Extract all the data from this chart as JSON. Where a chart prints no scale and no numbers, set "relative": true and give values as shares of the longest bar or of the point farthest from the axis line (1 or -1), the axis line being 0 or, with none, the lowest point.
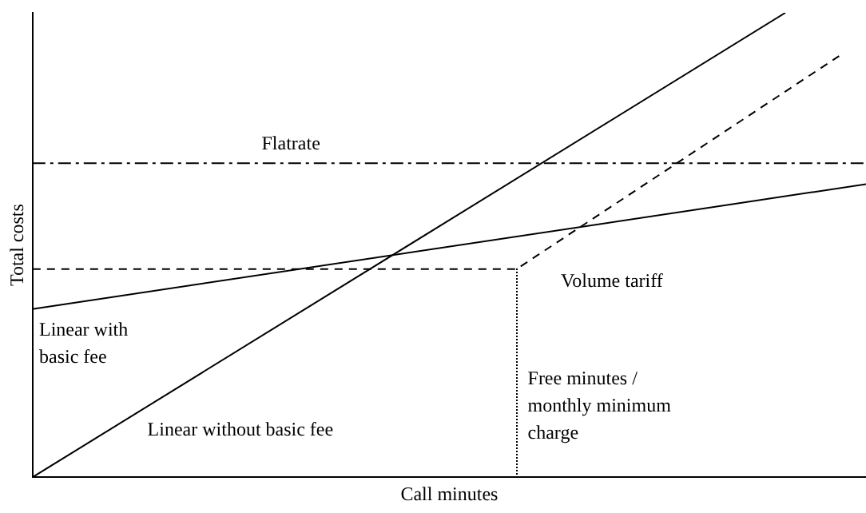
{
  "chart_data": {
    "type": "line",
    "relative": true,
    "xlabel": "Call minutes",
    "ylabel": "Total costs",
    "legend": false,
    "grid": false,
    "tick_labels": false,
    "marker": "none",
    "categories": [
      null,
      null,
      null,
      null,
      null,
      null,
      null,
      null,
      null,
      null,
      null,
      null,
      null,
      null,
      null,
      null,
      null,
      null,
      null,
      null,
      null,
      null,
      null,
      null,
      null,
      null,
      null,
      null,
      null,
      null,
      null,
      null
    ],
    "annotations": [
      "Free minutes / monthly minimum charge"
    ],
    "series": [
      {
        "name": "Linear without basic fee",
        "color": "#000000",
        "line_style": "solid",
        "values": [
          0,
          null,
          null,
          null,
          null,
          null,
          null,
          null,
          null,
          null,
          null,
          null,
          null,
          null,
          null,
          null,
          null,
          null,
          null,
          null,
          null,
          null,
          null,
          null,
          null,
          null,
          null,
          null,
          1,
          null,
          null,
          null
        ]
      },
      {
        "name": "Linear with basic fee",
        "color": "#000000",
        "line_style": "solid",
        "values": [
          0.362,
          null,
          null,
          null,
          null,
          null,
          null,
          null,
          null,
          null,
          null,
          null,
          null,
          null,
          null,
          null,
          null,
          null,
          null,
          null,
          null,
          null,
          null,
          null,
          null,
          null,
          null,
          null,
          null,
          null,
          null,
          0.631
        ]
      },
      {
        "name": "Flatrate",
        "color": "#000000",
        "line_style": "dashdot",
        "values": [
          0.676,
          null,
          null,
          null,
          null,
          null,
          null,
          null,
          null,
          null,
          null,
          null,
          null,
          null,
          null,
          null,
          null,
          null,
          null,
          null,
          null,
          null,
          null,
          null,
          null,
          null,
          null,
          null,
          null,
          null,
          null,
          0.676
        ]
      },
      {
        "name": "Volume tariff",
        "color": "#000000",
        "line_style": "dashed",
        "values": [
          0.448,
          null,
          null,
          null,
          null,
          null,
          null,
          null,
          null,
          null,
          null,
          null,
          null,
          null,
          null,
          null,
          null,
          null,
          0.448,
          null,
          null,
          null,
          null,
          null,
          null,
          null,
          null,
          null,
          null,
          null,
          0.907,
          null
        ]
      }
    ]
  }
}
